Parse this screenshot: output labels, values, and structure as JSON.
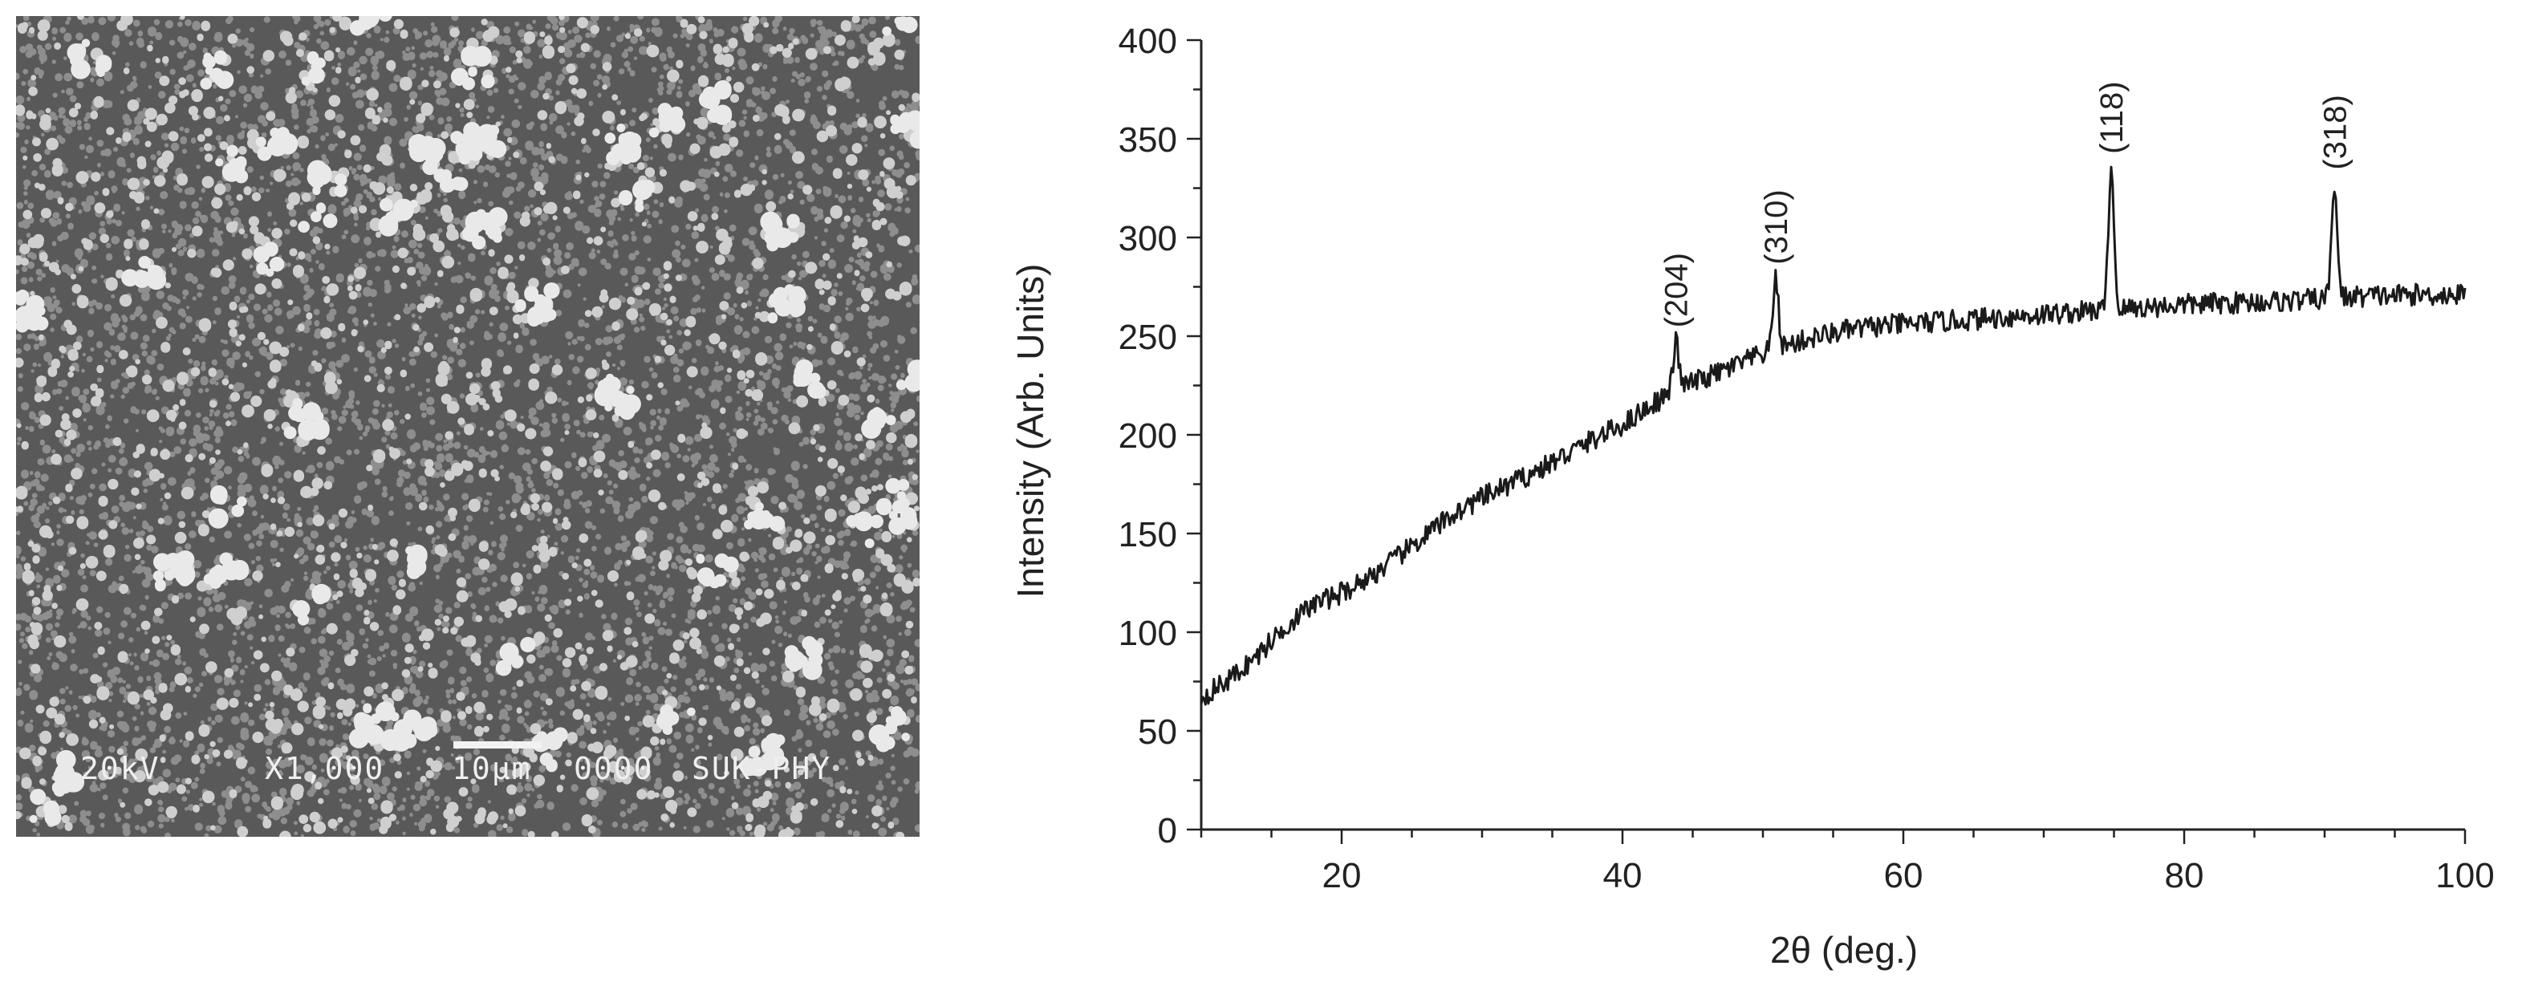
{
  "sem_image": {
    "caption_parts": [
      "20kV",
      "X1,000",
      "10µm",
      "0000",
      "SUK-PHY"
    ]
  },
  "chart_data": {
    "type": "line",
    "xlabel": "2θ (deg.)",
    "ylabel": "Intensity (Arb. Units)",
    "xlim": [
      10,
      100
    ],
    "ylim": [
      0,
      400
    ],
    "xticks": [
      20,
      40,
      60,
      80,
      100
    ],
    "yticks": [
      0,
      50,
      100,
      150,
      200,
      250,
      300,
      350,
      400
    ],
    "grid": false,
    "baseline": [
      [
        10,
        67
      ],
      [
        12,
        76
      ],
      [
        14,
        88
      ],
      [
        16,
        103
      ],
      [
        18,
        114
      ],
      [
        20,
        120
      ],
      [
        22,
        128
      ],
      [
        24,
        138
      ],
      [
        26,
        149
      ],
      [
        28,
        160
      ],
      [
        30,
        168
      ],
      [
        32,
        175
      ],
      [
        34,
        182
      ],
      [
        36,
        190
      ],
      [
        38,
        198
      ],
      [
        40,
        205
      ],
      [
        42,
        215
      ],
      [
        44,
        224
      ],
      [
        46,
        229
      ],
      [
        48,
        235
      ],
      [
        50,
        241
      ],
      [
        52,
        246
      ],
      [
        54,
        250
      ],
      [
        56,
        253
      ],
      [
        58,
        255
      ],
      [
        60,
        256
      ],
      [
        64,
        258
      ],
      [
        68,
        260
      ],
      [
        72,
        262
      ],
      [
        76,
        264
      ],
      [
        80,
        266
      ],
      [
        84,
        267
      ],
      [
        88,
        268
      ],
      [
        92,
        270
      ],
      [
        96,
        271
      ],
      [
        100,
        271
      ]
    ],
    "peaks": [
      {
        "label": "(204)",
        "x": 43.8,
        "y": 247
      },
      {
        "label": "(310)",
        "x": 50.9,
        "y": 279
      },
      {
        "label": "(118)",
        "x": 74.8,
        "y": 335
      },
      {
        "label": "(318)",
        "x": 90.7,
        "y": 327
      }
    ]
  }
}
